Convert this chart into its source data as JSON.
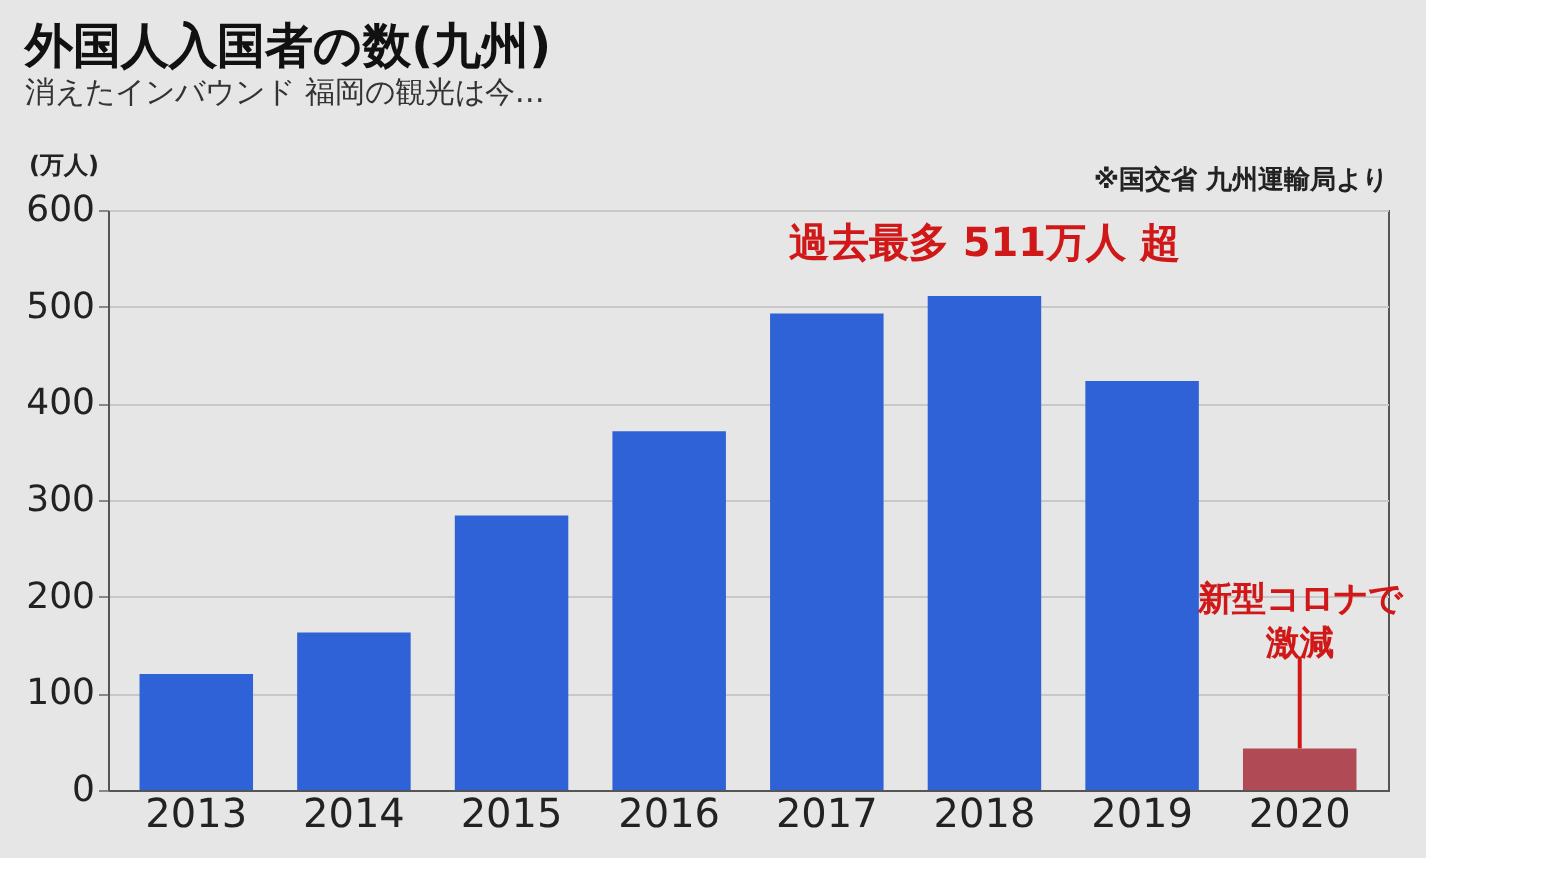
{
  "chart_data": {
    "type": "bar",
    "title": "外国人入国者の数(九州)",
    "subtitle": "消えたインバウンド 福岡の観光は今…",
    "ylabel": "(万人)",
    "categories": [
      "2013",
      "2014",
      "2015",
      "2016",
      "2017",
      "2018",
      "2019",
      "2020"
    ],
    "values": [
      120,
      163,
      284,
      371,
      493,
      511,
      423,
      43
    ],
    "colors": [
      "#2f62d6",
      "#2f62d6",
      "#2f62d6",
      "#2f62d6",
      "#2f62d6",
      "#2f62d6",
      "#2f62d6",
      "#b04a55"
    ],
    "ylim": [
      0,
      600
    ],
    "yticks": [
      0,
      100,
      200,
      300,
      400,
      500,
      600
    ],
    "grid": "y",
    "annotations": [
      "※国交省 九州運輸局より",
      {
        "text": "過去最多 511万人 超",
        "x": "2018",
        "y": 511
      },
      {
        "text": "新型コロナで激減",
        "x": "2020",
        "y": 43
      }
    ]
  }
}
